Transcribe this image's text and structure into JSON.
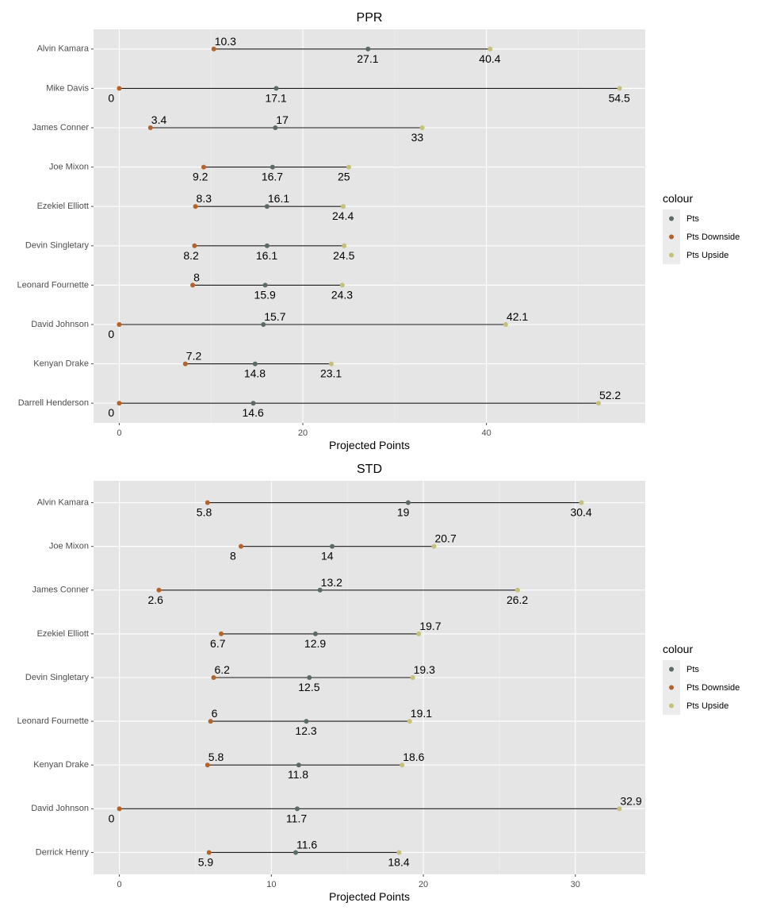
{
  "chart_data": [
    {
      "type": "dumbbell",
      "title": "PPR",
      "xlabel": "Projected Points",
      "xlim": [
        -2.8,
        57.3
      ],
      "xticks": [
        0,
        20,
        40
      ],
      "categories": [
        "Alvin Kamara",
        "Mike Davis",
        "James Conner",
        "Joe Mixon",
        "Ezekiel Elliott",
        "Devin Singletary",
        "Leonard Fournette",
        "David Johnson",
        "Kenyan Drake",
        "Darrell Henderson"
      ],
      "series": [
        {
          "name": "Pts Downside",
          "values": [
            10.3,
            0,
            3.4,
            9.2,
            8.3,
            8.2,
            8,
            0,
            7.2,
            0
          ]
        },
        {
          "name": "Pts",
          "values": [
            27.1,
            17.1,
            17,
            16.7,
            16.1,
            16.1,
            15.9,
            15.7,
            14.8,
            14.6
          ]
        },
        {
          "name": "Pts Upside",
          "values": [
            40.4,
            54.5,
            33,
            25,
            24.4,
            24.5,
            24.3,
            42.1,
            23.1,
            52.2
          ]
        }
      ],
      "labels": [
        [
          "10.3",
          "27.1",
          "40.4"
        ],
        [
          "0",
          "17.1",
          "54.5"
        ],
        [
          "3.4",
          "17",
          "33"
        ],
        [
          "9.2",
          "16.7",
          "25"
        ],
        [
          "8.3",
          "16.1",
          "24.4"
        ],
        [
          "8.2",
          "16.1",
          "24.5"
        ],
        [
          "8",
          "15.9",
          "24.3"
        ],
        [
          "0",
          "15.7",
          "42.1"
        ],
        [
          "7.2",
          "14.8",
          "23.1"
        ],
        [
          "0",
          "14.6",
          "52.2"
        ]
      ],
      "label_positions": [
        [
          "above",
          "below",
          "below"
        ],
        [
          "below",
          "below",
          "below"
        ],
        [
          "above",
          "above",
          "below"
        ],
        [
          "below",
          "below",
          "below"
        ],
        [
          "above",
          "above",
          "below"
        ],
        [
          "below",
          "below",
          "below"
        ],
        [
          "above",
          "below",
          "below"
        ],
        [
          "below",
          "above",
          "above"
        ],
        [
          "above",
          "below",
          "below"
        ],
        [
          "below",
          "below",
          "above"
        ]
      ]
    },
    {
      "type": "dumbbell",
      "title": "STD",
      "xlabel": "Projected Points",
      "xlim": [
        -1.7,
        34.6
      ],
      "xticks": [
        0,
        10,
        20,
        30
      ],
      "categories": [
        "Alvin Kamara",
        "Joe Mixon",
        "James Conner",
        "Ezekiel Elliott",
        "Devin Singletary",
        "Leonard Fournette",
        "Kenyan Drake",
        "David Johnson",
        "Derrick Henry"
      ],
      "series": [
        {
          "name": "Pts Downside",
          "values": [
            5.8,
            8,
            2.6,
            6.7,
            6.2,
            6,
            5.8,
            0,
            5.9
          ]
        },
        {
          "name": "Pts",
          "values": [
            19,
            14,
            13.2,
            12.9,
            12.5,
            12.3,
            11.8,
            11.7,
            11.6
          ]
        },
        {
          "name": "Pts Upside",
          "values": [
            30.4,
            20.7,
            26.2,
            19.7,
            19.3,
            19.1,
            18.6,
            32.9,
            18.4
          ]
        }
      ],
      "labels": [
        [
          "5.8",
          "19",
          "30.4"
        ],
        [
          "8",
          "14",
          "20.7"
        ],
        [
          "2.6",
          "13.2",
          "26.2"
        ],
        [
          "6.7",
          "12.9",
          "19.7"
        ],
        [
          "6.2",
          "12.5",
          "19.3"
        ],
        [
          "6",
          "12.3",
          "19.1"
        ],
        [
          "5.8",
          "11.8",
          "18.6"
        ],
        [
          "0",
          "11.7",
          "32.9"
        ],
        [
          "5.9",
          "11.6",
          "18.4"
        ]
      ],
      "label_positions": [
        [
          "below",
          "below",
          "below"
        ],
        [
          "below",
          "below",
          "above"
        ],
        [
          "below",
          "above",
          "below"
        ],
        [
          "below",
          "below",
          "above"
        ],
        [
          "above",
          "below",
          "above"
        ],
        [
          "above",
          "below",
          "above"
        ],
        [
          "above",
          "below",
          "above"
        ],
        [
          "below",
          "below",
          "above"
        ],
        [
          "below",
          "above",
          "below"
        ]
      ]
    }
  ],
  "legend": {
    "title": "colour",
    "placement": "right",
    "items": [
      {
        "name": "Pts",
        "color": "#5a6b62"
      },
      {
        "name": "Pts Downside",
        "color": "#b5632b"
      },
      {
        "name": "Pts Upside",
        "color": "#c5c07a"
      }
    ]
  },
  "colors": {
    "segment": "#1a1a1a",
    "panel": "#e5e5e5",
    "grid": "#ffffff"
  }
}
